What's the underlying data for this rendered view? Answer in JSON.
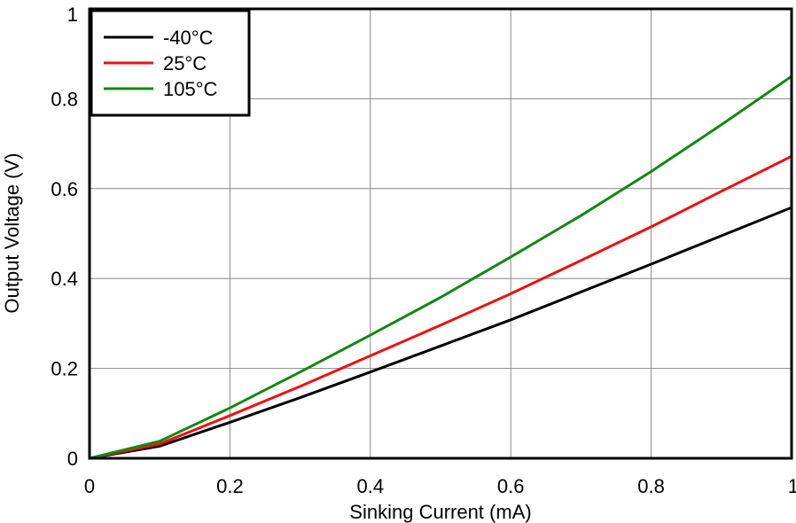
{
  "chart_data": {
    "type": "line",
    "title": "",
    "xlabel": "Sinking Current (mA)",
    "ylabel": "Output Voltage (V)",
    "xlim": [
      0,
      1
    ],
    "ylim": [
      0,
      1
    ],
    "xticks": [
      0,
      0.2,
      0.4,
      0.6,
      0.8,
      1
    ],
    "yticks": [
      0,
      0.2,
      0.4,
      0.6,
      0.8,
      1
    ],
    "xtick_labels": [
      "0",
      "0.2",
      "0.4",
      "0.6",
      "0.8",
      "1"
    ],
    "ytick_labels": [
      "0",
      "0.2",
      "0.4",
      "0.6",
      "0.8",
      "1"
    ],
    "grid": true,
    "legend_position": "top-left",
    "series": [
      {
        "name": "-40°C",
        "color": "#000000",
        "x": [
          0,
          0.1,
          0.2,
          0.3,
          0.4,
          0.5,
          0.6,
          0.7,
          0.8,
          0.9,
          1
        ],
        "y": [
          0,
          0.027,
          0.08,
          0.135,
          0.192,
          0.25,
          0.308,
          0.37,
          0.432,
          0.495,
          0.558
        ]
      },
      {
        "name": "25°C",
        "color": "#ee1111",
        "x": [
          0,
          0.1,
          0.2,
          0.3,
          0.4,
          0.5,
          0.6,
          0.7,
          0.8,
          0.9,
          1
        ],
        "y": [
          0,
          0.032,
          0.095,
          0.16,
          0.228,
          0.296,
          0.366,
          0.44,
          0.515,
          0.594,
          0.672
        ]
      },
      {
        "name": "105°C",
        "color": "#118811",
        "x": [
          0,
          0.1,
          0.2,
          0.3,
          0.4,
          0.5,
          0.6,
          0.7,
          0.8,
          0.9,
          1
        ],
        "y": [
          0,
          0.038,
          0.112,
          0.192,
          0.274,
          0.358,
          0.448,
          0.54,
          0.638,
          0.742,
          0.85
        ]
      }
    ]
  }
}
